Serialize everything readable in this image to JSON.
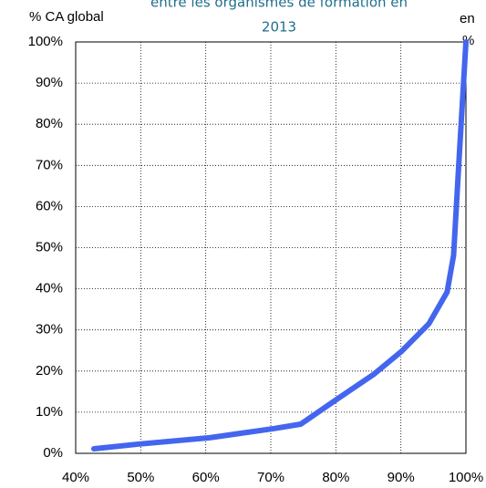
{
  "chart_data": {
    "type": "line",
    "title": [
      "entre les organismes de formation en",
      "2013"
    ],
    "y_label": "% CA global",
    "x_label": [
      "en",
      "%"
    ],
    "x": [
      42.8,
      49.4,
      60.6,
      70.4,
      74.6,
      80.3,
      85.9,
      90.1,
      94.3,
      97.1,
      98.1,
      98.9,
      100
    ],
    "series": [
      {
        "name": "% CA global",
        "color": "#4466ee",
        "values": [
          1.1,
          2.2,
          3.8,
          6,
          7.1,
          13.3,
          19.3,
          24.8,
          31.5,
          39.2,
          48.1,
          70.3,
          100
        ]
      }
    ],
    "xlim": [
      40,
      100
    ],
    "xticks": [
      {
        "value": 40,
        "label": "40%"
      },
      {
        "value": 50,
        "label": "50%"
      },
      {
        "value": 60,
        "label": "60%"
      },
      {
        "value": 70,
        "label": "70%"
      },
      {
        "value": 80,
        "label": "80%"
      },
      {
        "value": 90,
        "label": "90%"
      },
      {
        "value": 100,
        "label": "100%"
      }
    ],
    "ylim": [
      0,
      100
    ],
    "yticks": [
      {
        "value": 0,
        "label": "0%"
      },
      {
        "value": 10,
        "label": "10%"
      },
      {
        "value": 20,
        "label": "20%"
      },
      {
        "value": 30,
        "label": "30%"
      },
      {
        "value": 40,
        "label": "40%"
      },
      {
        "value": 50,
        "label": "50%"
      },
      {
        "value": 60,
        "label": "60%"
      },
      {
        "value": 70,
        "label": "70%"
      },
      {
        "value": 80,
        "label": "80%"
      },
      {
        "value": 90,
        "label": "90%"
      },
      {
        "value": 100,
        "label": "100%"
      }
    ],
    "grid": true
  }
}
